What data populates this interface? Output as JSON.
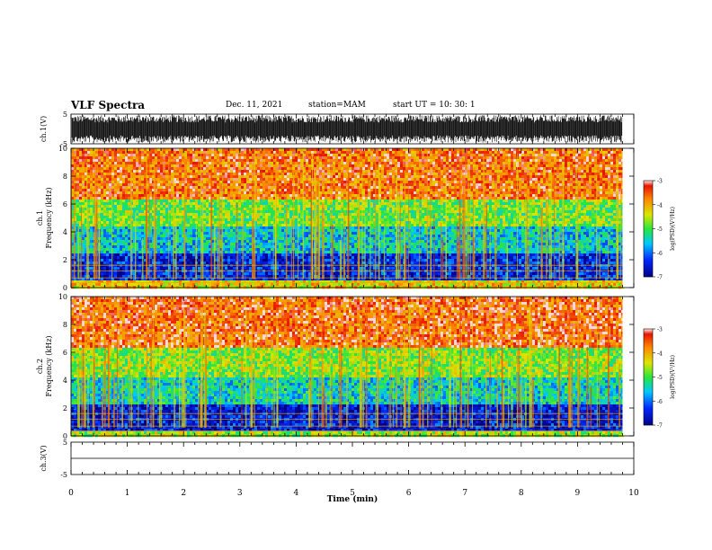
{
  "header": {
    "title": "VLF Spectra",
    "date": "Dec. 11, 2021",
    "station": "station=MAM",
    "start": "start  UT =   10: 30: 1"
  },
  "chart_data": [
    {
      "type": "line",
      "panel": "ch1-waveform",
      "ylabel": "ch.1(V)",
      "yticks": [
        "5",
        "-5"
      ],
      "ylim": [
        -5,
        5
      ],
      "xlim": [
        0,
        10
      ],
      "x_extent": 9.8,
      "description_values": "dense broadband waveform spanning roughly -4.5 to 4.5 V"
    },
    {
      "type": "heatmap",
      "panel": "ch1-spectrogram",
      "ylabel": "ch.1\nFrequency (kHz)",
      "yticks": [
        "0",
        "2",
        "4",
        "6",
        "8",
        "10"
      ],
      "ylim": [
        0,
        10
      ],
      "xlim": [
        0,
        10
      ],
      "x_extent": 9.8,
      "colorbar": {
        "label": "log(PSD)(V²/Hz)",
        "ticks": [
          "-3",
          "-4",
          "-5",
          "-6",
          "-7"
        ],
        "range": [
          -7,
          -3
        ]
      },
      "bands": [
        {
          "f_low": 0,
          "f_high": 0.6,
          "level": -4.2
        },
        {
          "f_low": 0.6,
          "f_high": 2.6,
          "level": -6.4
        },
        {
          "f_low": 2.6,
          "f_high": 4.5,
          "level": -5.5
        },
        {
          "f_low": 4.5,
          "f_high": 6.5,
          "level": -4.8
        },
        {
          "f_low": 6.5,
          "f_high": 10,
          "level": -3.6
        }
      ]
    },
    {
      "type": "heatmap",
      "panel": "ch2-spectrogram",
      "ylabel": "ch.2\nFrequency (kHz)",
      "yticks": [
        "0",
        "2",
        "4",
        "6",
        "8",
        "10"
      ],
      "ylim": [
        0,
        10
      ],
      "xlim": [
        0,
        10
      ],
      "x_extent": 9.8,
      "colorbar": {
        "label": "log(PSD)(V²/Hz)",
        "ticks": [
          "-3",
          "-4",
          "-5",
          "-6",
          "-7"
        ],
        "range": [
          -7,
          -3
        ]
      },
      "bands": [
        {
          "f_low": 0,
          "f_high": 0.5,
          "level": -4.6
        },
        {
          "f_low": 0.5,
          "f_high": 2.4,
          "level": -6.5
        },
        {
          "f_low": 2.4,
          "f_high": 4.2,
          "level": -5.4
        },
        {
          "f_low": 4.2,
          "f_high": 6.5,
          "level": -4.7
        },
        {
          "f_low": 6.5,
          "f_high": 10,
          "level": -3.5
        }
      ]
    },
    {
      "type": "line",
      "panel": "ch3-waveform",
      "ylabel": "ch.3(V)",
      "yticks": [
        "5",
        "-5"
      ],
      "ylim": [
        -5,
        5
      ],
      "xlim": [
        0,
        10
      ],
      "x": [
        0,
        10
      ],
      "y": [
        0,
        0
      ]
    }
  ],
  "xaxis": {
    "label": "Time  (min)",
    "ticks": [
      "0",
      "1",
      "2",
      "3",
      "4",
      "5",
      "6",
      "7",
      "8",
      "9",
      "10"
    ]
  }
}
